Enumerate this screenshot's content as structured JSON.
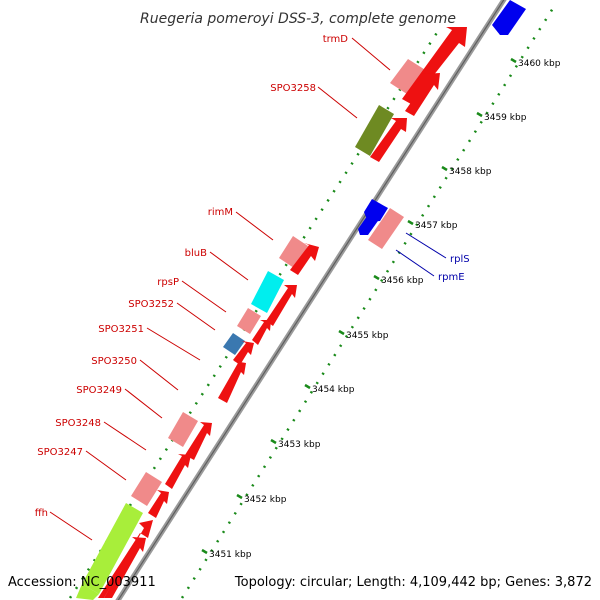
{
  "title": "Ruegeria pomeroyi DSS-3, complete genome",
  "footer": {
    "accession": "Accession: NC_003911",
    "summary": "Topology: circular; Length: 4,109,442 bp; Genes: 3,872"
  },
  "colors": {
    "backbone": "#8c8c8c",
    "cds": "#ee1111",
    "rna": "#f08a8a",
    "tick": "#1a8a1a",
    "label_red": "#cc0000",
    "label_blue": "#0000aa",
    "blue_gene": "#0000ee",
    "olive_gene": "#6e8a22",
    "cyan_gene": "#00eeee",
    "steel_gene": "#3a78b0",
    "lime_gene": "#a8ee3a"
  },
  "ticks": [
    {
      "label": "3451 kbp"
    },
    {
      "label": "3452 kbp"
    },
    {
      "label": "3453 kbp"
    },
    {
      "label": "3454 kbp"
    },
    {
      "label": "3455 kbp"
    },
    {
      "label": "3456 kbp"
    },
    {
      "label": "3457 kbp"
    },
    {
      "label": "3458 kbp"
    },
    {
      "label": "3459 kbp"
    },
    {
      "label": "3460 kbp"
    }
  ],
  "gene_labels": [
    {
      "name": "trmD",
      "color": "label_red"
    },
    {
      "name": "SPO3258",
      "color": "label_red"
    },
    {
      "name": "rimM",
      "color": "label_red"
    },
    {
      "name": "bluB",
      "color": "label_red"
    },
    {
      "name": "rpsP",
      "color": "label_red"
    },
    {
      "name": "SPO3252",
      "color": "label_red"
    },
    {
      "name": "SPO3251",
      "color": "label_red"
    },
    {
      "name": "SPO3250",
      "color": "label_red"
    },
    {
      "name": "SPO3249",
      "color": "label_red"
    },
    {
      "name": "SPO3248",
      "color": "label_red"
    },
    {
      "name": "SPO3247",
      "color": "label_red"
    },
    {
      "name": "ffh",
      "color": "label_red"
    },
    {
      "name": "rplS",
      "color": "label_blue"
    },
    {
      "name": "rpmE",
      "color": "label_blue"
    }
  ]
}
